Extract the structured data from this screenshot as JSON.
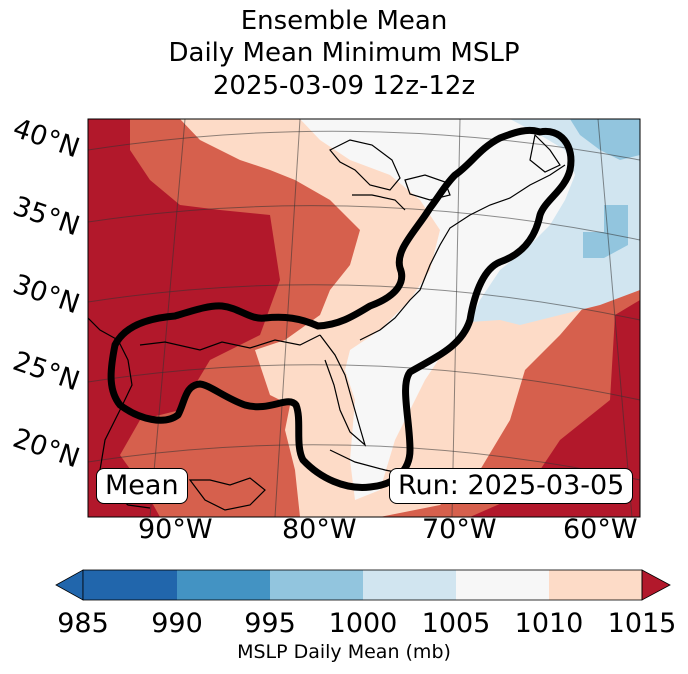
{
  "title": {
    "line1": "Ensemble Mean",
    "line2": "Daily Mean Minimum MSLP",
    "line3": "2025-03-09 12z-12z"
  },
  "map": {
    "lat_labels": [
      "40°N",
      "35°N",
      "30°N",
      "25°N",
      "20°N"
    ],
    "lon_labels": [
      "90°W",
      "80°W",
      "70°W",
      "60°W"
    ],
    "mean_label": "Mean",
    "run_label": "Run: 2025-03-05",
    "colors": {
      "c985": "#2166ac",
      "c990": "#4393c3",
      "c995": "#92c5de",
      "c1000": "#d1e5f0",
      "c1005": "#f7f7f7",
      "c1010": "#fddbc7",
      "c1015": "#d6604d",
      "over": "#b2182b"
    }
  },
  "colorbar": {
    "ticks": [
      "985",
      "990",
      "995",
      "1000",
      "1005",
      "1010",
      "1015"
    ],
    "label": "MSLP Daily Mean (mb)",
    "colors": [
      "#2166ac",
      "#4393c3",
      "#92c5de",
      "#d1e5f0",
      "#f7f7f7",
      "#fddbc7",
      "#d6604d",
      "#b2182b"
    ]
  }
}
